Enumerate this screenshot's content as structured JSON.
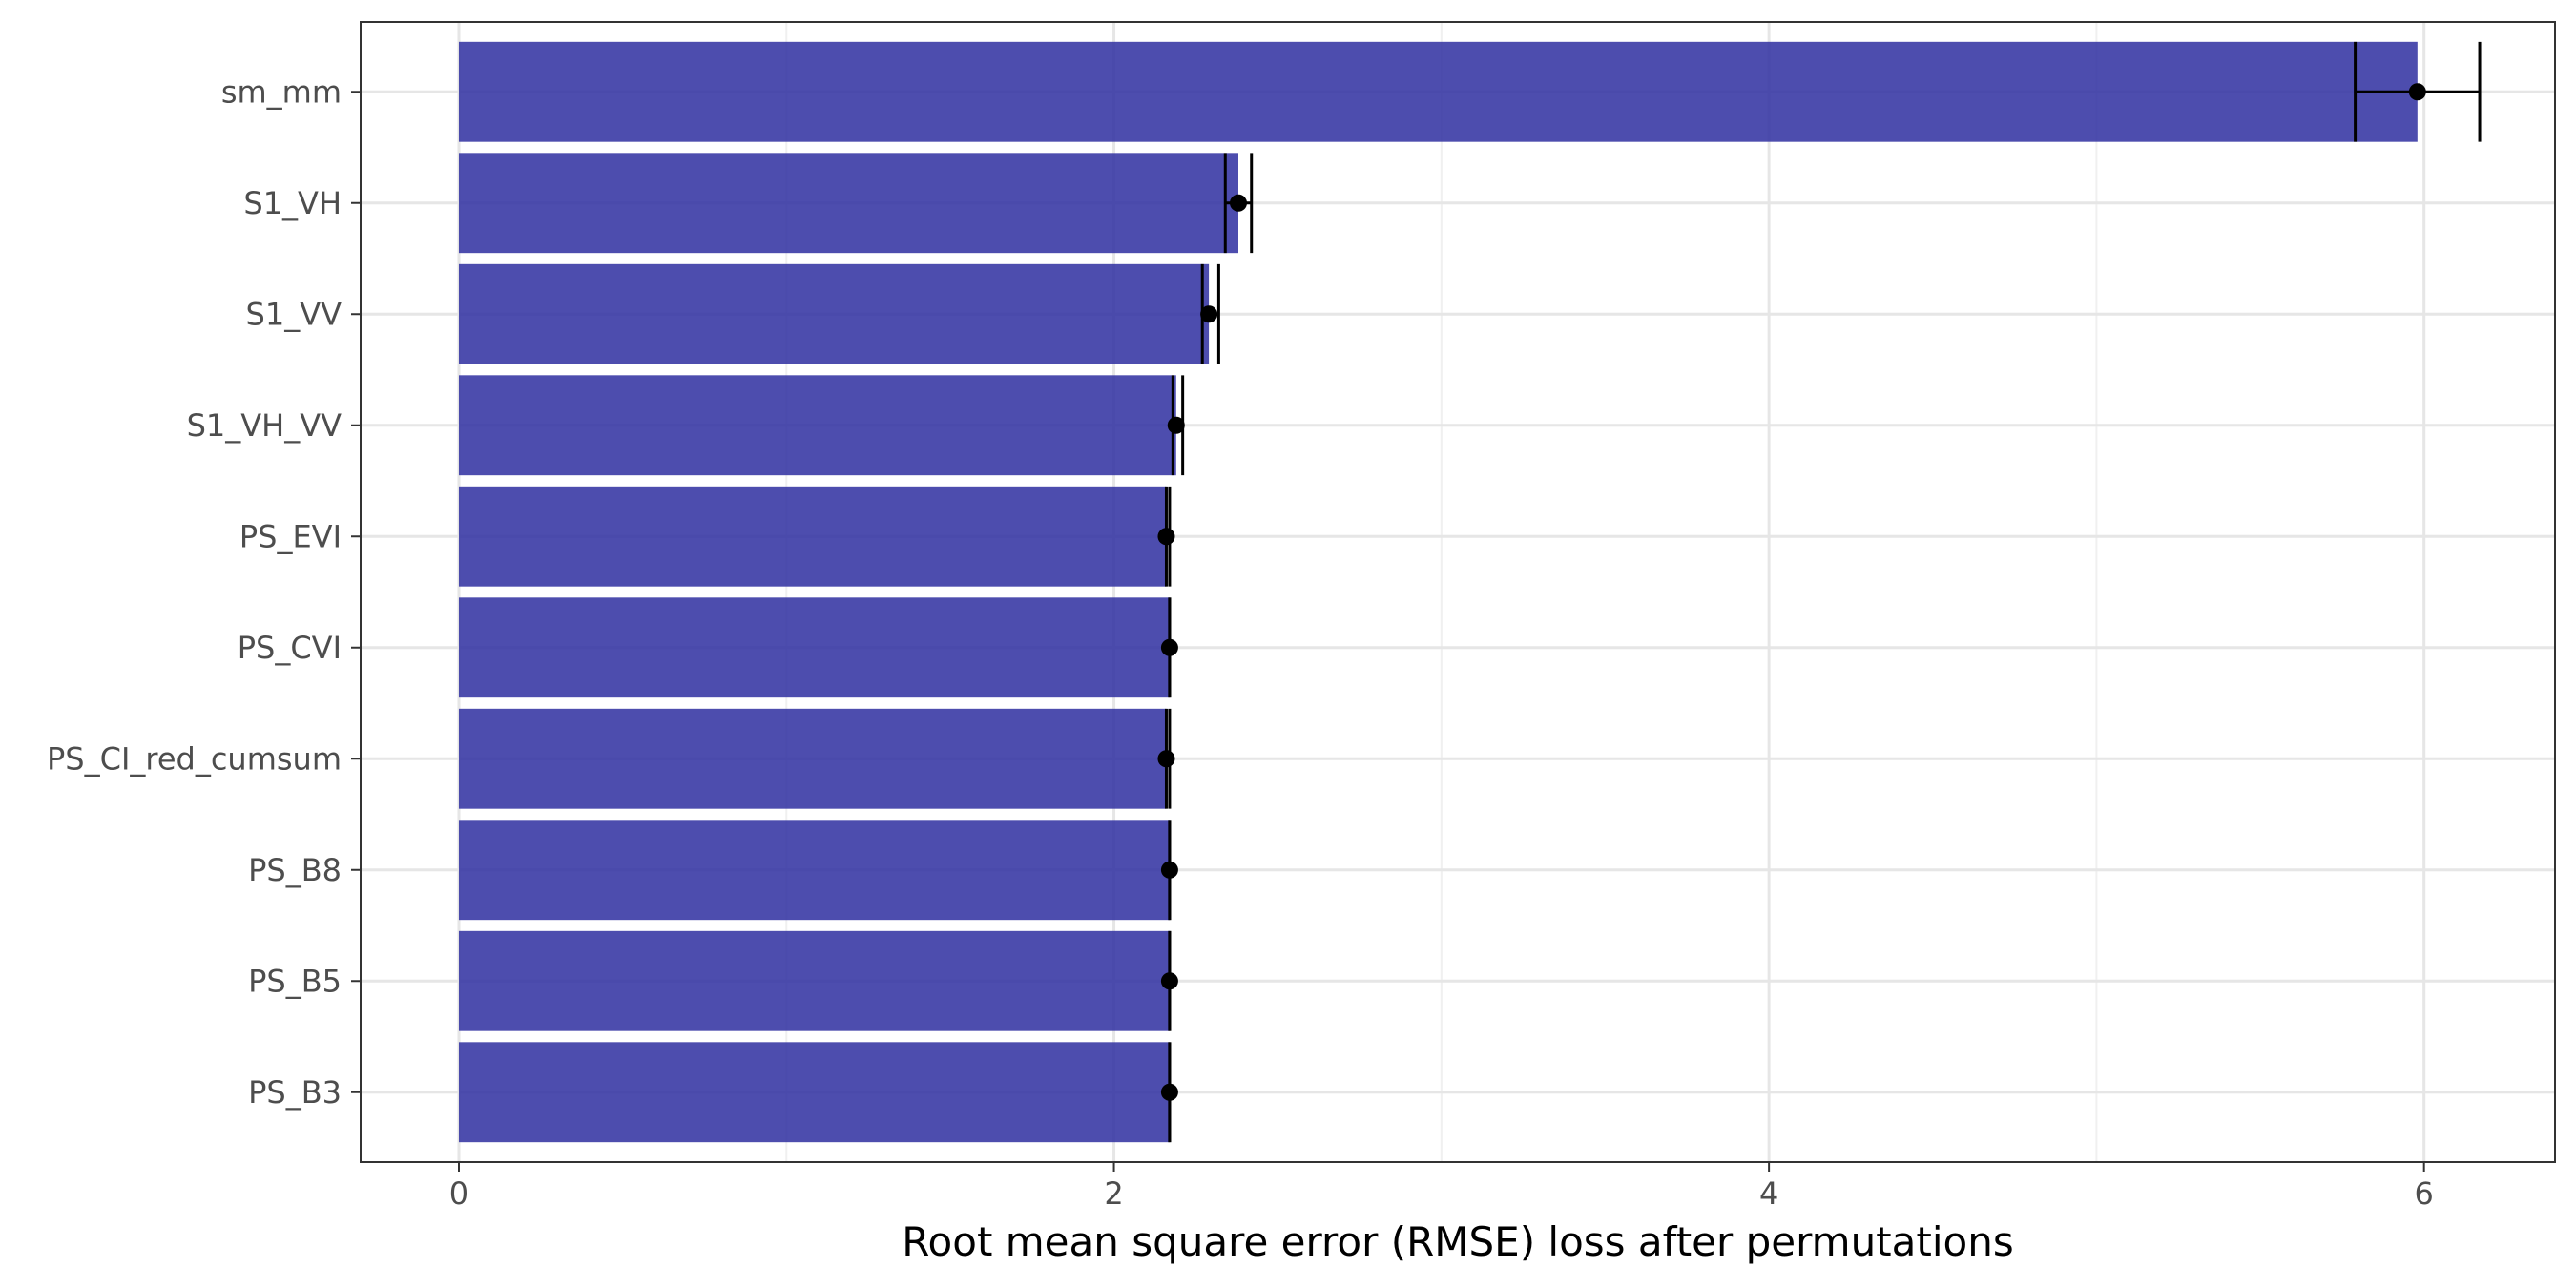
{
  "chart_data": {
    "type": "bar",
    "orientation": "horizontal",
    "title": "",
    "xlabel": "Root mean square error (RMSE) loss after permutations",
    "ylabel": "",
    "xlim": [
      -0.3,
      6.4
    ],
    "x_ticks": [
      0,
      2,
      4,
      6
    ],
    "grid": true,
    "legend": "none",
    "bar_color": "#2E2EA0",
    "categories": [
      "sm_mm",
      "S1_VH",
      "S1_VV",
      "S1_VH_VV",
      "PS_EVI",
      "PS_CVI",
      "PS_CI_red_cumsum",
      "PS_B8",
      "PS_B5",
      "PS_B3"
    ],
    "values": [
      5.98,
      2.38,
      2.29,
      2.19,
      2.16,
      2.17,
      2.16,
      2.17,
      2.17,
      2.17
    ],
    "error_low": [
      5.79,
      2.34,
      2.27,
      2.18,
      2.16,
      2.17,
      2.16,
      2.17,
      2.17,
      2.17
    ],
    "error_high": [
      6.17,
      2.42,
      2.32,
      2.21,
      2.17,
      2.17,
      2.17,
      2.17,
      2.17,
      2.17
    ]
  }
}
